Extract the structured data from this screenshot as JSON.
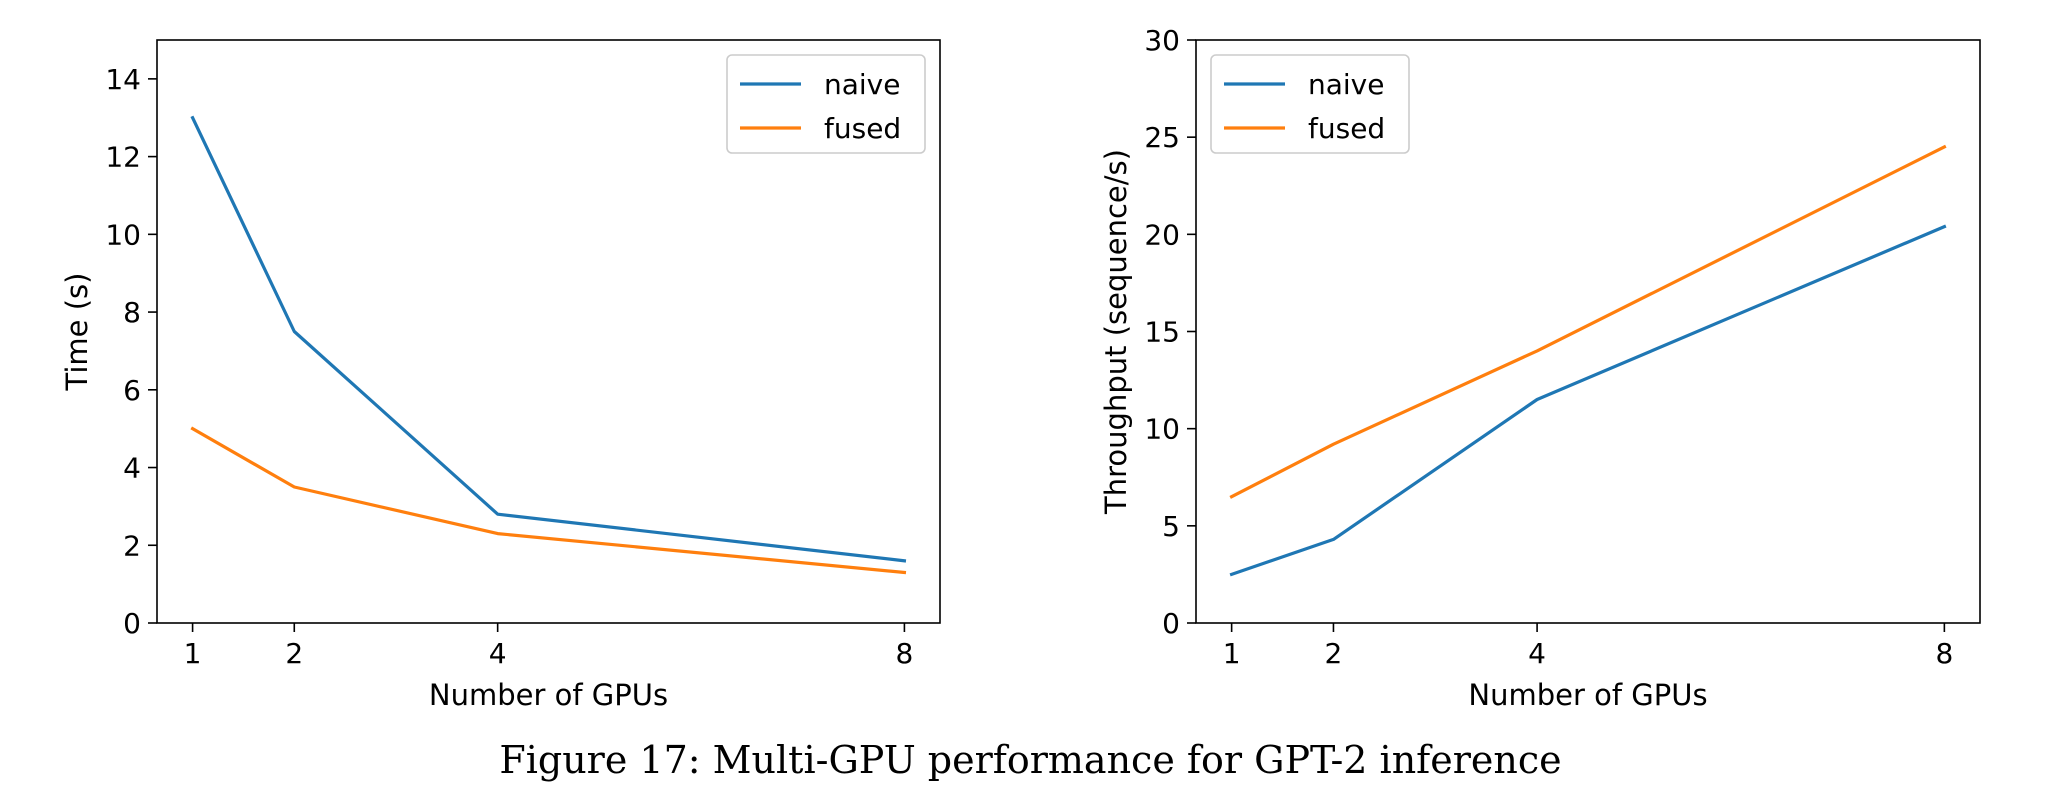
{
  "caption": "Figure 17: Multi-GPU performance for GPT-2 inference",
  "chart_data": [
    {
      "type": "line",
      "x": [
        1,
        2,
        4,
        8
      ],
      "xticks": [
        1,
        2,
        4,
        8
      ],
      "xlabel": "Number of GPUs",
      "ylabel": "Time (s)",
      "xlim": [
        0.65,
        8.35
      ],
      "ylim": [
        0,
        15
      ],
      "yticks": [
        0,
        2,
        4,
        6,
        8,
        10,
        12,
        14
      ],
      "grid": false,
      "legend": "upper right",
      "series": [
        {
          "name": "naive",
          "color": "#1f77b4",
          "values": [
            13.0,
            7.5,
            2.8,
            1.6
          ]
        },
        {
          "name": "fused",
          "color": "#ff7f0e",
          "values": [
            5.0,
            3.5,
            2.3,
            1.3
          ]
        }
      ]
    },
    {
      "type": "line",
      "x": [
        1,
        2,
        4,
        8
      ],
      "xticks": [
        1,
        2,
        4,
        8
      ],
      "xlabel": "Number of GPUs",
      "ylabel": "Throughput (sequence/s)",
      "xlim": [
        0.65,
        8.35
      ],
      "ylim": [
        0,
        30
      ],
      "yticks": [
        0,
        5,
        10,
        15,
        20,
        25,
        30
      ],
      "grid": false,
      "legend": "upper left",
      "series": [
        {
          "name": "naive",
          "color": "#1f77b4",
          "values": [
            2.5,
            4.3,
            11.5,
            20.4
          ]
        },
        {
          "name": "fused",
          "color": "#ff7f0e",
          "values": [
            6.5,
            9.2,
            14.0,
            24.5
          ]
        }
      ]
    }
  ]
}
